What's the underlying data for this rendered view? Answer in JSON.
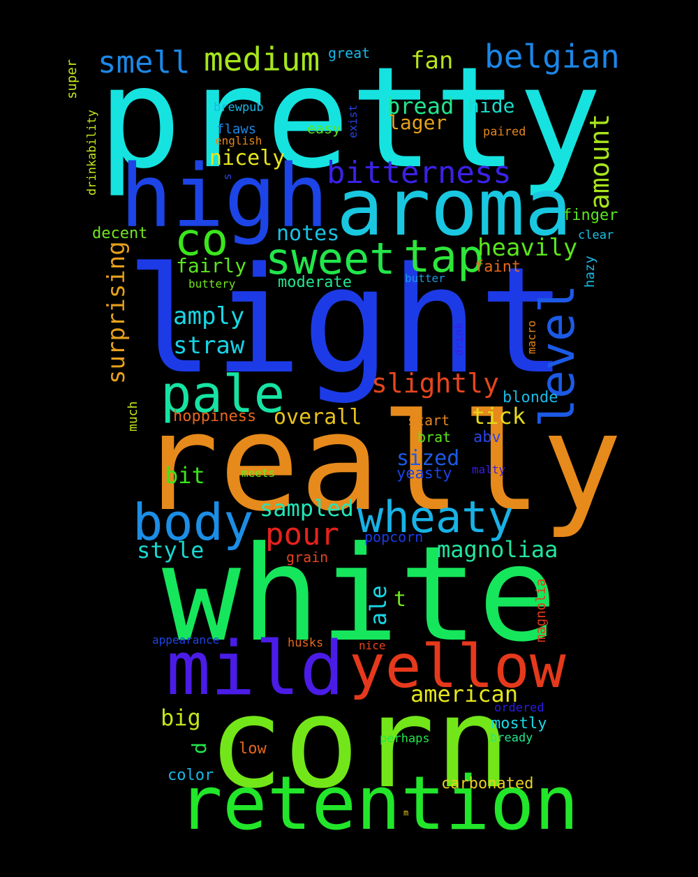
{
  "words": {
    "pretty": {
      "text": "pretty",
      "color": "#16e3e0"
    },
    "light": {
      "text": "light",
      "color": "#1c3be6"
    },
    "really": {
      "text": "really",
      "color": "#e68a1c"
    },
    "white": {
      "text": "white",
      "color": "#16e65c"
    },
    "corn": {
      "text": "corn",
      "color": "#73e619"
    },
    "high": {
      "text": "high",
      "color": "#1c44e6"
    },
    "aroma": {
      "text": "aroma",
      "color": "#19c8e0"
    },
    "retention": {
      "text": "retention",
      "color": "#22e62a"
    },
    "mild": {
      "text": "mild",
      "color": "#4a1ce6"
    },
    "yellow": {
      "text": "yellow",
      "color": "#e6391c"
    },
    "body": {
      "text": "body",
      "color": "#1c8ee6"
    },
    "wheaty": {
      "text": "wheaty",
      "color": "#19b2e6"
    },
    "pale": {
      "text": "pale",
      "color": "#16e3a3"
    },
    "sweet": {
      "text": "sweet",
      "color": "#22e64a"
    },
    "tap": {
      "text": "tap",
      "color": "#2ee63a"
    },
    "co": {
      "text": "co",
      "color": "#3be61c"
    },
    "level": {
      "text": "level",
      "color": "#1c5ae6"
    },
    "bitterness": {
      "text": "bitterness",
      "color": "#3a22e6"
    },
    "medium": {
      "text": "medium",
      "color": "#a6e61c"
    },
    "belgian": {
      "text": "belgian",
      "color": "#1c86e6"
    },
    "smell": {
      "text": "smell",
      "color": "#1c88e6"
    },
    "fan": {
      "text": "fan",
      "color": "#b8e61c"
    },
    "bread": {
      "text": "bread",
      "color": "#22e68e"
    },
    "hide": {
      "text": "hide",
      "color": "#19dccd"
    },
    "lager": {
      "text": "lager",
      "color": "#e6a21c"
    },
    "amount": {
      "text": "amount",
      "color": "#a8e61c"
    },
    "slightly": {
      "text": "slightly",
      "color": "#e6461c"
    },
    "pour": {
      "text": "pour",
      "color": "#e6221c"
    },
    "surprising": {
      "text": "surprising",
      "color": "#e6a01c"
    },
    "heavily": {
      "text": "heavily",
      "color": "#5ae61c"
    },
    "amply": {
      "text": "amply",
      "color": "#19d8e6"
    },
    "straw": {
      "text": "straw",
      "color": "#19d2e6"
    },
    "magnoliaa": {
      "text": "magnoliaa",
      "color": "#22e6a0"
    },
    "american": {
      "text": "american",
      "color": "#e6e61c"
    },
    "sampled": {
      "text": "sampled",
      "color": "#22e6b8"
    },
    "style": {
      "text": "style",
      "color": "#19d8d0"
    },
    "overall": {
      "text": "overall",
      "color": "#e6c41c"
    },
    "tick": {
      "text": "tick",
      "color": "#e6da1c"
    },
    "sized": {
      "text": "sized",
      "color": "#1c5ae6"
    },
    "bit": {
      "text": "bit",
      "color": "#3ae61c"
    },
    "notes": {
      "text": "notes",
      "color": "#19c2e6"
    },
    "fairly": {
      "text": "fairly",
      "color": "#5ae61c"
    },
    "nicely": {
      "text": "nicely",
      "color": "#e6e61c"
    },
    "ale": {
      "text": "ale",
      "color": "#19d8e6"
    },
    "t": {
      "text": "t",
      "color": "#73e61c"
    },
    "big": {
      "text": "big",
      "color": "#c2e61c"
    },
    "d": {
      "text": "d",
      "color": "#22e64a"
    },
    "mostly": {
      "text": "mostly",
      "color": "#19d8e6"
    },
    "carbonated": {
      "text": "carbonated",
      "color": "#e6d21c"
    },
    "color": {
      "text": "color",
      "color": "#19b8e6"
    },
    "low": {
      "text": "low",
      "color": "#e6681c"
    },
    "perhaps": {
      "text": "perhaps",
      "color": "#22e64a"
    },
    "bready": {
      "text": "bready",
      "color": "#22e68e"
    },
    "ordered": {
      "text": "ordered",
      "color": "#2a1ce6"
    },
    "magnolia": {
      "text": "magnolia",
      "color": "#e6391c"
    },
    "appearance": {
      "text": "appearance",
      "color": "#1c44e6"
    },
    "husks": {
      "text": "husks",
      "color": "#e6681c"
    },
    "nice": {
      "text": "nice",
      "color": "#e6461c"
    },
    "grain": {
      "text": "grain",
      "color": "#e6461c"
    },
    "popcorn": {
      "text": "popcorn",
      "color": "#1c3be6"
    },
    "hoppiness": {
      "text": "hoppiness",
      "color": "#e6681c"
    },
    "much": {
      "text": "much",
      "color": "#c2e61c"
    },
    "start": {
      "text": "start",
      "color": "#e6861c"
    },
    "brat": {
      "text": "brat",
      "color": "#5ae61c"
    },
    "abv": {
      "text": "abv",
      "color": "#2a44e6"
    },
    "meets": {
      "text": "meets",
      "color": "#73e61c"
    },
    "yeasty": {
      "text": "yeasty",
      "color": "#1c44e6"
    },
    "malty": {
      "text": "malty",
      "color": "#3a1ce6"
    },
    "blonde": {
      "text": "blonde",
      "color": "#19b8e6"
    },
    "buttery": {
      "text": "buttery",
      "color": "#73e61c"
    },
    "moderate": {
      "text": "moderate",
      "color": "#22e68e"
    },
    "butter": {
      "text": "butter",
      "color": "#1c9ae6"
    },
    "faint": {
      "text": "faint",
      "color": "#e6681c"
    },
    "hazy": {
      "text": "hazy",
      "color": "#19b8e6"
    },
    "clear": {
      "text": "clear",
      "color": "#19c2e6"
    },
    "finger": {
      "text": "finger",
      "color": "#5ae61c"
    },
    "decent": {
      "text": "decent",
      "color": "#73e61c"
    },
    "drinkability": {
      "text": "drinkability",
      "color": "#c2e61c"
    },
    "super": {
      "text": "super",
      "color": "#c2e61c"
    },
    "great": {
      "text": "great",
      "color": "#19b8e6"
    },
    "brewpub": {
      "text": "brewpub",
      "color": "#19b8e6"
    },
    "flaws": {
      "text": "flaws",
      "color": "#1c88e6"
    },
    "english": {
      "text": "english",
      "color": "#e6861c"
    },
    "easy": {
      "text": "easy",
      "color": "#5ae61c"
    },
    "exist": {
      "text": "exist",
      "color": "#2a44e6"
    },
    "paired": {
      "text": "paired",
      "color": "#e6861c"
    },
    "s": {
      "text": "s",
      "color": "#2a44e6"
    },
    "drink": {
      "text": "drink",
      "color": "#3a1ce6"
    },
    "macro": {
      "text": "macro",
      "color": "#e6861c"
    },
    "m": {
      "text": "m",
      "color": "#e6c41c"
    }
  }
}
